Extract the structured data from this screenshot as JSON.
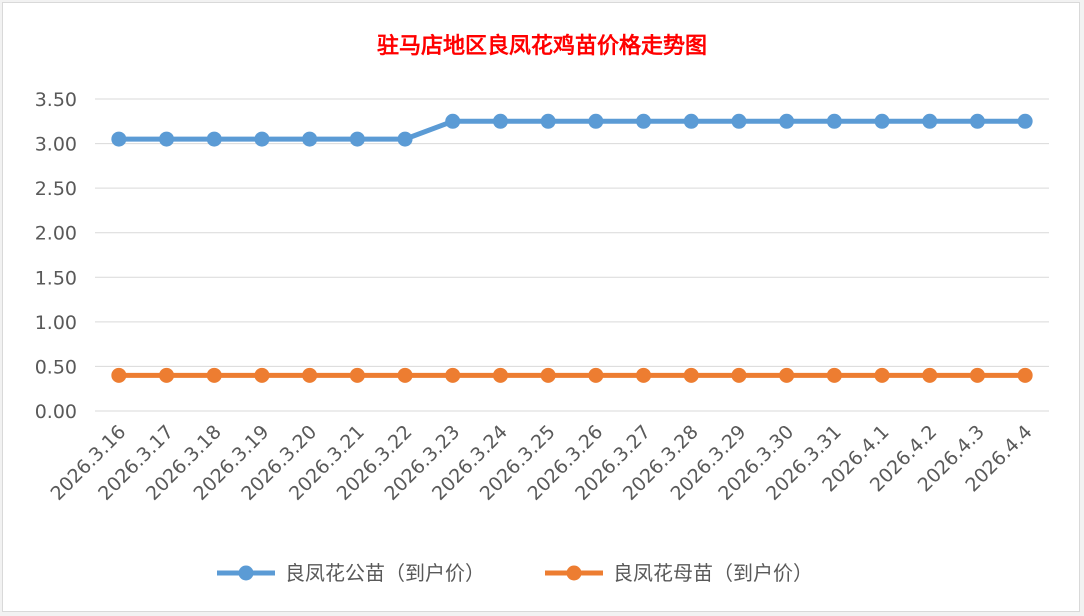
{
  "chart_data": {
    "type": "line",
    "title": "驻马店地区良凤花鸡苗价格走势图",
    "title_color": "#ff0000",
    "categories": [
      "2026.3.16",
      "2026.3.17",
      "2026.3.18",
      "2026.3.19",
      "2026.3.20",
      "2026.3.21",
      "2026.3.22",
      "2026.3.23",
      "2026.3.24",
      "2026.3.25",
      "2026.3.26",
      "2026.3.27",
      "2026.3.28",
      "2026.3.29",
      "2026.3.30",
      "2026.3.31",
      "2026.4.1",
      "2026.4.2",
      "2026.4.3",
      "2026.4.4"
    ],
    "series": [
      {
        "name": "良凤花公苗（到户价）",
        "color": "#5b9bd5",
        "values": [
          3.05,
          3.05,
          3.05,
          3.05,
          3.05,
          3.05,
          3.05,
          3.25,
          3.25,
          3.25,
          3.25,
          3.25,
          3.25,
          3.25,
          3.25,
          3.25,
          3.25,
          3.25,
          3.25,
          3.25
        ]
      },
      {
        "name": "良凤花母苗（到户价）",
        "color": "#ed7d31",
        "values": [
          0.4,
          0.4,
          0.4,
          0.4,
          0.4,
          0.4,
          0.4,
          0.4,
          0.4,
          0.4,
          0.4,
          0.4,
          0.4,
          0.4,
          0.4,
          0.4,
          0.4,
          0.4,
          0.4,
          0.4
        ]
      }
    ],
    "yticks": [
      "0.00",
      "0.50",
      "1.00",
      "1.50",
      "2.00",
      "2.50",
      "3.00",
      "3.50"
    ],
    "ylim": [
      0,
      3.5
    ],
    "grid": true,
    "legend": "bottom"
  }
}
